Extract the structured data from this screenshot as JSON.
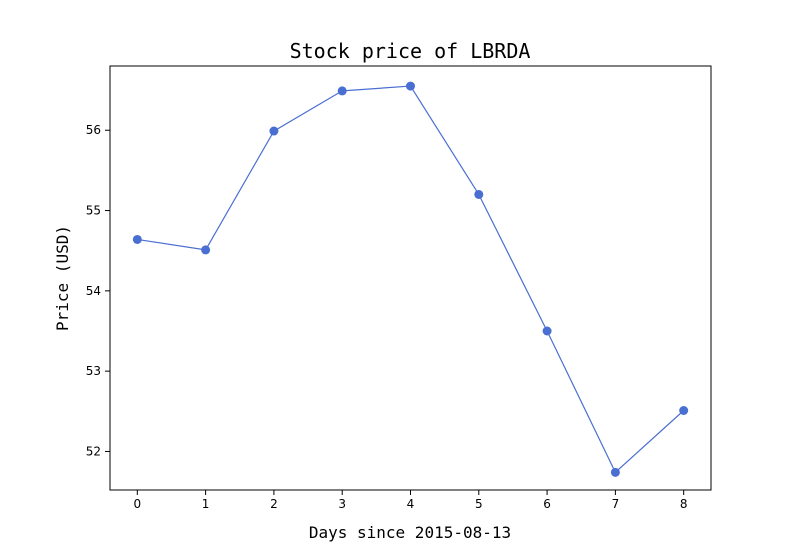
{
  "chart_data": {
    "type": "line",
    "title": "Stock price of LBRDA",
    "xlabel": "Days since 2015-08-13",
    "ylabel": "Price (USD)",
    "x": [
      0,
      1,
      2,
      3,
      4,
      5,
      6,
      7,
      8
    ],
    "series": [
      {
        "values": [
          54.64,
          54.51,
          55.99,
          56.49,
          56.55,
          55.2,
          53.5,
          51.74,
          52.51
        ]
      }
    ],
    "xlim": [
      -0.4,
      8.4
    ],
    "ylim": [
      51.52,
      56.8
    ],
    "x_ticks": [
      0,
      1,
      2,
      3,
      4,
      5,
      6,
      7,
      8
    ],
    "x_tick_labels": [
      "0",
      "1",
      "2",
      "3",
      "4",
      "5",
      "6",
      "7",
      "8"
    ],
    "y_ticks": [
      52,
      53,
      54,
      55,
      56
    ],
    "y_tick_labels": [
      "52",
      "53",
      "54",
      "55",
      "56"
    ],
    "grid": false,
    "legend": "none",
    "line_color": "#4a6fd2",
    "marker_color": "#4a6fd2"
  }
}
